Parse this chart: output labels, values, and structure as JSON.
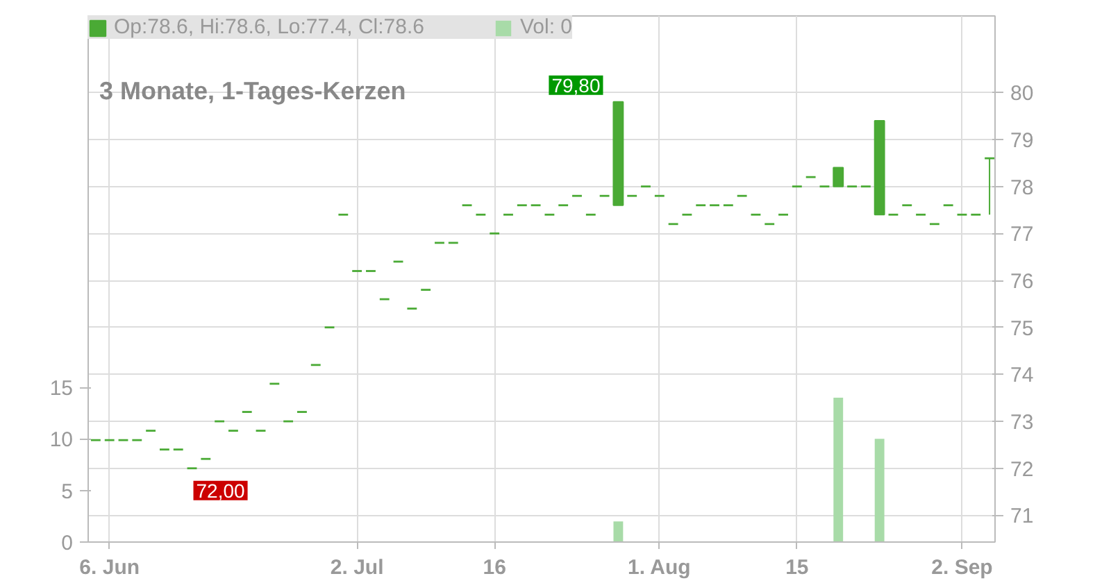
{
  "chart_data": {
    "type": "candlestick",
    "title": "3 Monate, 1-Tages-Kerzen",
    "categories": [
      null,
      "6. Jun",
      null,
      null,
      null,
      null,
      null,
      null,
      null,
      null,
      null,
      null,
      null,
      null,
      null,
      null,
      null,
      null,
      null,
      "2. Jul",
      null,
      null,
      null,
      null,
      null,
      null,
      null,
      null,
      null,
      "16",
      null,
      null,
      null,
      null,
      null,
      null,
      null,
      null,
      null,
      null,
      null,
      "1. Aug",
      null,
      null,
      null,
      null,
      null,
      null,
      null,
      null,
      null,
      "15",
      null,
      null,
      null,
      null,
      null,
      null,
      null,
      null,
      null,
      null,
      null,
      "2. Sep",
      null,
      null
    ],
    "series": [
      {
        "name": "Op:78.6, Hi:78.6, Lo:77.4, Cl:78.6",
        "color": "#4aaa35",
        "ohlc": [
          [
            72.6,
            72.6,
            72.6,
            72.6
          ],
          [
            72.6,
            72.6,
            72.6,
            72.6
          ],
          [
            72.6,
            72.6,
            72.6,
            72.6
          ],
          [
            72.6,
            72.6,
            72.6,
            72.6
          ],
          [
            72.8,
            72.8,
            72.8,
            72.8
          ],
          [
            72.4,
            72.4,
            72.4,
            72.4
          ],
          [
            72.4,
            72.4,
            72.4,
            72.4
          ],
          [
            72.0,
            72.0,
            72.0,
            72.0
          ],
          [
            72.2,
            72.2,
            72.2,
            72.2
          ],
          [
            73.0,
            73.0,
            73.0,
            73.0
          ],
          [
            72.8,
            72.8,
            72.8,
            72.8
          ],
          [
            73.2,
            73.2,
            73.2,
            73.2
          ],
          [
            72.8,
            72.8,
            72.8,
            72.8
          ],
          [
            73.8,
            73.8,
            73.8,
            73.8
          ],
          [
            73.0,
            73.0,
            73.0,
            73.0
          ],
          [
            73.2,
            73.2,
            73.2,
            73.2
          ],
          [
            74.2,
            74.2,
            74.2,
            74.2
          ],
          [
            75.0,
            75.0,
            75.0,
            75.0
          ],
          [
            77.4,
            77.4,
            77.4,
            77.4
          ],
          [
            76.2,
            76.2,
            76.2,
            76.2
          ],
          [
            76.2,
            76.2,
            76.2,
            76.2
          ],
          [
            75.6,
            75.6,
            75.6,
            75.6
          ],
          [
            76.4,
            76.4,
            76.4,
            76.4
          ],
          [
            75.4,
            75.4,
            75.4,
            75.4
          ],
          [
            75.8,
            75.8,
            75.8,
            75.8
          ],
          [
            76.8,
            76.8,
            76.8,
            76.8
          ],
          [
            76.8,
            76.8,
            76.8,
            76.8
          ],
          [
            77.6,
            77.6,
            77.6,
            77.6
          ],
          [
            77.4,
            77.4,
            77.4,
            77.4
          ],
          [
            77.0,
            77.0,
            77.0,
            77.0
          ],
          [
            77.4,
            77.4,
            77.4,
            77.4
          ],
          [
            77.6,
            77.6,
            77.6,
            77.6
          ],
          [
            77.6,
            77.6,
            77.6,
            77.6
          ],
          [
            77.4,
            77.4,
            77.4,
            77.4
          ],
          [
            77.6,
            77.6,
            77.6,
            77.6
          ],
          [
            77.8,
            77.8,
            77.8,
            77.8
          ],
          [
            77.4,
            77.4,
            77.4,
            77.4
          ],
          [
            77.8,
            77.8,
            77.8,
            77.8
          ],
          [
            77.6,
            79.8,
            77.6,
            79.8
          ],
          [
            77.8,
            77.8,
            77.8,
            77.8
          ],
          [
            78.0,
            78.0,
            78.0,
            78.0
          ],
          [
            77.8,
            77.8,
            77.8,
            77.8
          ],
          [
            77.2,
            77.2,
            77.2,
            77.2
          ],
          [
            77.4,
            77.4,
            77.4,
            77.4
          ],
          [
            77.6,
            77.6,
            77.6,
            77.6
          ],
          [
            77.6,
            77.6,
            77.6,
            77.6
          ],
          [
            77.6,
            77.6,
            77.6,
            77.6
          ],
          [
            77.8,
            77.8,
            77.8,
            77.8
          ],
          [
            77.4,
            77.4,
            77.4,
            77.4
          ],
          [
            77.2,
            77.2,
            77.2,
            77.2
          ],
          [
            77.4,
            77.4,
            77.4,
            77.4
          ],
          [
            78.0,
            78.0,
            78.0,
            78.0
          ],
          [
            78.2,
            78.2,
            78.2,
            78.2
          ],
          [
            78.0,
            78.0,
            78.0,
            78.0
          ],
          [
            78.0,
            78.4,
            78.0,
            78.4
          ],
          [
            78.0,
            78.0,
            78.0,
            78.0
          ],
          [
            78.0,
            78.0,
            78.0,
            78.0
          ],
          [
            77.4,
            79.4,
            77.4,
            79.4
          ],
          [
            77.4,
            77.4,
            77.4,
            77.4
          ],
          [
            77.6,
            77.6,
            77.6,
            77.6
          ],
          [
            77.4,
            77.4,
            77.4,
            77.4
          ],
          [
            77.2,
            77.2,
            77.2,
            77.2
          ],
          [
            77.6,
            77.6,
            77.6,
            77.6
          ],
          [
            77.4,
            77.4,
            77.4,
            77.4
          ],
          [
            77.4,
            77.4,
            77.4,
            77.4
          ],
          [
            78.6,
            78.6,
            77.4,
            78.6
          ]
        ]
      },
      {
        "type": "bar",
        "name": "Vol: 0",
        "axis": "y2",
        "color": "#a8dba8",
        "values": [
          0,
          0,
          0,
          0,
          0,
          0,
          0,
          0,
          0,
          0,
          0,
          0,
          0,
          0,
          0,
          0,
          0,
          0,
          0,
          0,
          0,
          0,
          0,
          0,
          0,
          0,
          0,
          0,
          0,
          0,
          0,
          0,
          0,
          0,
          0,
          0,
          0,
          0,
          2,
          0,
          0,
          0,
          0,
          0,
          0,
          0,
          0,
          0,
          0,
          0,
          0,
          0,
          0,
          0,
          14,
          0,
          0,
          10,
          0,
          0,
          0,
          0,
          0,
          0,
          0,
          0
        ]
      }
    ],
    "ylim": [
      70.43,
      81.63
    ],
    "yticks": [
      71,
      72,
      73,
      74,
      75,
      76,
      77,
      78,
      79,
      80
    ],
    "y2lim": [
      0,
      51
    ],
    "y2ticks": [
      0,
      5,
      10,
      15
    ],
    "annotations": [
      "79,80",
      "72,00"
    ],
    "grid": true,
    "legend": "top left"
  }
}
